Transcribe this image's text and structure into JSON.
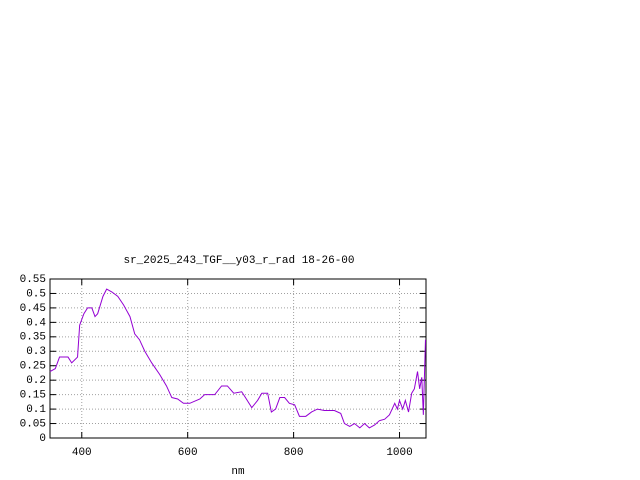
{
  "chart_data": {
    "type": "line",
    "title": "sr_2025_243_TGF__y03_r_rad 18-26-00",
    "x_label": "nm",
    "x": [
      340,
      350,
      358,
      374,
      381,
      392,
      396,
      404,
      411,
      419,
      425,
      430,
      440,
      447,
      457,
      468,
      479,
      491,
      500,
      509,
      519,
      532,
      547,
      560,
      570,
      581,
      592,
      604,
      623,
      632,
      651,
      664,
      675,
      687,
      702,
      709,
      721,
      732,
      740,
      751,
      758,
      766,
      774,
      783,
      792,
      802,
      811,
      823,
      834,
      845,
      858,
      877,
      889,
      896,
      906,
      915,
      925,
      934,
      943,
      953,
      962,
      972,
      981,
      991,
      996,
      1000,
      1006,
      1011,
      1017,
      1023,
      1028,
      1034,
      1038,
      1042,
      1045,
      1049
    ],
    "series": [
      {
        "color": "#9400d3",
        "values": [
          0.23,
          0.24,
          0.28,
          0.28,
          0.26,
          0.28,
          0.39,
          0.43,
          0.45,
          0.45,
          0.42,
          0.43,
          0.49,
          0.515,
          0.505,
          0.49,
          0.46,
          0.42,
          0.36,
          0.34,
          0.3,
          0.26,
          0.22,
          0.18,
          0.14,
          0.135,
          0.12,
          0.12,
          0.135,
          0.15,
          0.15,
          0.18,
          0.18,
          0.155,
          0.16,
          0.14,
          0.105,
          0.13,
          0.155,
          0.155,
          0.09,
          0.1,
          0.14,
          0.14,
          0.12,
          0.115,
          0.075,
          0.075,
          0.09,
          0.1,
          0.095,
          0.095,
          0.085,
          0.05,
          0.04,
          0.05,
          0.035,
          0.05,
          0.035,
          0.045,
          0.06,
          0.065,
          0.08,
          0.12,
          0.1,
          0.13,
          0.1,
          0.13,
          0.09,
          0.155,
          0.17,
          0.23,
          0.17,
          0.21,
          0.08,
          0.34
        ]
      }
    ],
    "xlim": [
      340,
      1050
    ],
    "xticks": [
      400,
      600,
      800,
      1000
    ],
    "ylim": [
      0,
      0.55
    ],
    "yticks": [
      0,
      0.05,
      0.1,
      0.15,
      0.2,
      0.25,
      0.3,
      0.35,
      0.4,
      0.45,
      0.5,
      0.55
    ],
    "grid": true
  }
}
